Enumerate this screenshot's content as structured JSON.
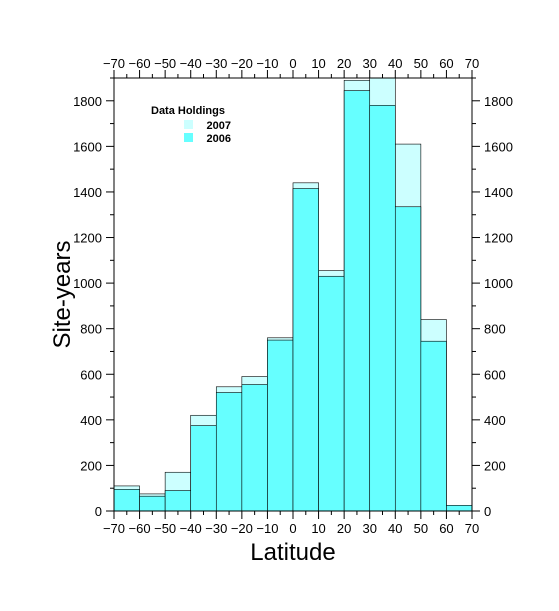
{
  "chart_data": {
    "type": "bar",
    "title": "",
    "xlabel": "Latitude",
    "ylabel": "Site-years",
    "xlim": [
      -70,
      70
    ],
    "ylim": [
      0,
      1900
    ],
    "x_ticks": [
      -70,
      -60,
      -50,
      -40,
      -30,
      -20,
      -10,
      0,
      10,
      20,
      30,
      40,
      50,
      60,
      70
    ],
    "y_ticks": [
      0,
      200,
      400,
      600,
      800,
      1000,
      1200,
      1400,
      1600,
      1800
    ],
    "bin_width": 10,
    "bins": [
      [
        -70,
        -60
      ],
      [
        -60,
        -50
      ],
      [
        -50,
        -40
      ],
      [
        -40,
        -30
      ],
      [
        -30,
        -20
      ],
      [
        -20,
        -10
      ],
      [
        -10,
        0
      ],
      [
        0,
        10
      ],
      [
        10,
        20
      ],
      [
        20,
        30
      ],
      [
        30,
        40
      ],
      [
        40,
        50
      ],
      [
        50,
        60
      ],
      [
        60,
        70
      ]
    ],
    "legend": {
      "title": "Data Holdings",
      "placement": "top-left"
    },
    "series": [
      {
        "name": "2007",
        "color": "#ccffff",
        "values": [
          110,
          75,
          170,
          420,
          545,
          590,
          760,
          1440,
          1055,
          1890,
          1900,
          1610,
          840,
          25
        ]
      },
      {
        "name": "2006",
        "color": "#66ffff",
        "values": [
          95,
          65,
          90,
          375,
          520,
          555,
          750,
          1415,
          1030,
          1845,
          1780,
          1335,
          745,
          25
        ]
      }
    ]
  }
}
